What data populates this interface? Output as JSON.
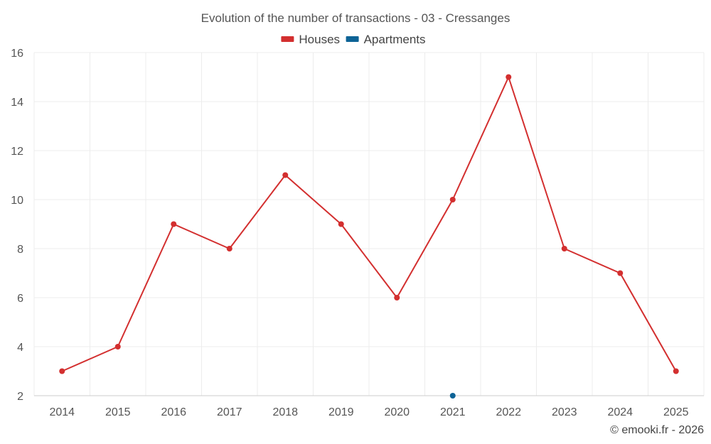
{
  "chart_data": {
    "type": "line",
    "title": "Evolution of the number of transactions - 03 - Cressanges",
    "x": [
      "2014",
      "2015",
      "2016",
      "2017",
      "2018",
      "2019",
      "2020",
      "2021",
      "2022",
      "2023",
      "2024",
      "2025"
    ],
    "series": [
      {
        "name": "Houses",
        "color": "#d32f2f",
        "values": [
          3,
          4,
          9,
          8,
          11,
          9,
          6,
          10,
          15,
          8,
          7,
          3
        ]
      },
      {
        "name": "Apartments",
        "color": "#0d6396",
        "values": [
          null,
          null,
          null,
          null,
          null,
          null,
          null,
          2,
          null,
          null,
          null,
          null
        ]
      }
    ],
    "ylim": [
      2,
      16
    ],
    "yticks": [
      2,
      4,
      6,
      8,
      10,
      12,
      14,
      16
    ],
    "grid": true,
    "legend_position": "top-center",
    "xlabel": "",
    "ylabel": ""
  },
  "credit": "© emooki.fr - 2026"
}
